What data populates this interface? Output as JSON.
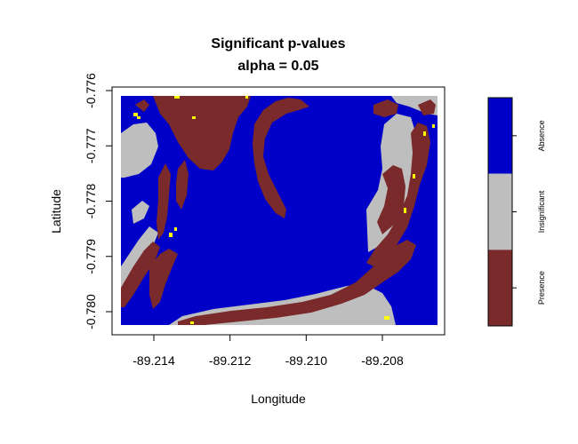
{
  "chart_data": {
    "type": "heatmap",
    "title": "Significant p-values",
    "subtitle": "alpha = 0.05",
    "xlabel": "Longitude",
    "ylabel": "Latitude",
    "xlim": [
      -89.215,
      -89.2065
    ],
    "ylim": [
      -0.7803,
      -0.7759
    ],
    "x_ticks": [
      -89.214,
      -89.212,
      -89.21,
      -89.208
    ],
    "x_tick_labels": [
      "-89.214",
      "-89.212",
      "-89.210",
      "-89.208"
    ],
    "y_ticks": [
      -0.776,
      -0.777,
      -0.778,
      -0.779,
      -0.78
    ],
    "y_tick_labels": [
      "-0.776",
      "-0.777",
      "-0.778",
      "-0.779",
      "-0.780"
    ],
    "legend": {
      "placement": "right",
      "entries": [
        {
          "label": "Absence",
          "color": "#0000c8"
        },
        {
          "label": "Insignificant",
          "color": "#bebebe"
        },
        {
          "label": "Presence",
          "color": "#7a2a2a"
        }
      ]
    },
    "extra_color": {
      "color": "#ffff00"
    },
    "grid": false
  }
}
